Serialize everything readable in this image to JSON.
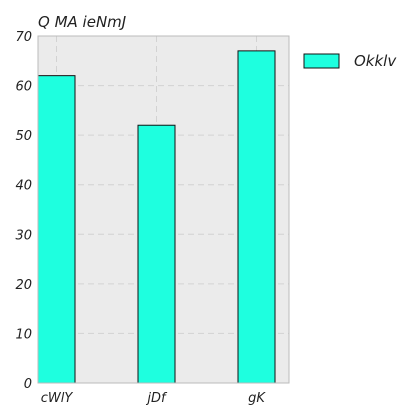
{
  "chart_data": {
    "type": "bar",
    "title": "Q MA  ieNmJ",
    "xlabel": "",
    "ylabel": "",
    "categories": [
      "cWlY",
      "jDf",
      "gK"
    ],
    "series": [
      {
        "name": "Okklv",
        "values": [
          62,
          52,
          67
        ]
      }
    ],
    "ylim": [
      0,
      70
    ],
    "yticks": [
      0,
      10,
      20,
      30,
      40,
      50,
      60,
      70
    ],
    "grid": true,
    "legend_position": "outside-top-right",
    "colors": {
      "bar_fill": "#1effdf",
      "bar_stroke": "#111111",
      "plot_background": "#ebebeb",
      "grid": "#d2d2d2",
      "axis": "#bbbbbb"
    }
  }
}
